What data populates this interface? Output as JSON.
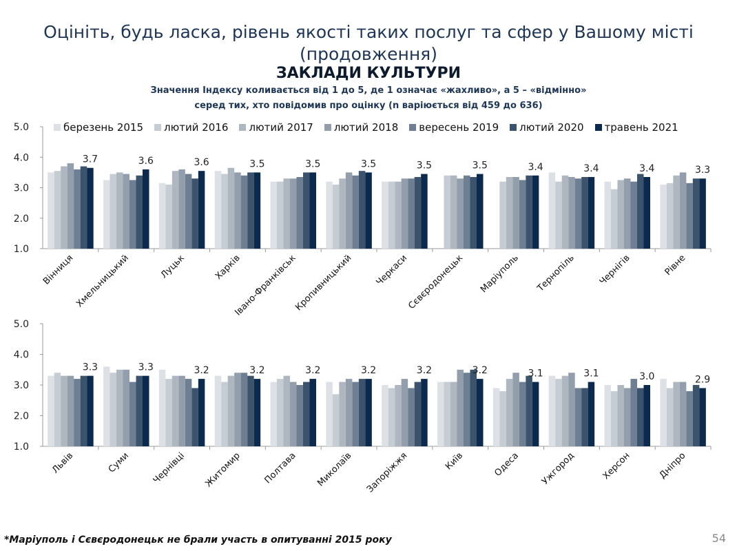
{
  "title_line1": "Оцініть, будь ласка, рівень якості таких послуг та сфер у Вашому місті",
  "title_line2": "(продовження)",
  "section": "ЗАКЛАДИ КУЛЬТУРИ",
  "subtitle_line1": "Значення Індексу коливається від 1 до 5, де 1 означає «жахливо», а 5 – «відмінно»",
  "subtitle_line2": "серед тих, хто повідомив про оцінку (n варіюється від 459 до 636)",
  "footnote": "*Маріуполь і Сєвєродонецьк не брали участь в опитуванні 2015 року",
  "page_number": "54",
  "chart_data": [
    {
      "type": "bar",
      "ylim": [
        1,
        5
      ],
      "yticks": [
        "1.0",
        "2.0",
        "3.0",
        "4.0",
        "5.0"
      ],
      "series_names": [
        "березень 2015",
        "лютий 2016",
        "лютий 2017",
        "лютий 2018",
        "вересень 2019",
        "лютий 2020",
        "травень 2021"
      ],
      "colors": [
        "#dde1e6",
        "#c6ccd3",
        "#aeb6c0",
        "#929eac",
        "#6e7f93",
        "#3c536e",
        "#0c2a4d"
      ],
      "categories": [
        "Вінниця",
        "Хмельницький",
        "Луцьк",
        "Харків",
        "Івано-Франківськ",
        "Кропивницький",
        "Черкаси",
        "Сєвєродонецьк",
        "Маріуполь",
        "Тернопіль",
        "Чернігів",
        "Рівне"
      ],
      "values": [
        [
          3.5,
          3.55,
          3.7,
          3.8,
          3.6,
          3.7,
          3.65
        ],
        [
          3.25,
          3.45,
          3.5,
          3.45,
          3.25,
          3.4,
          3.6
        ],
        [
          3.15,
          3.1,
          3.55,
          3.6,
          3.45,
          3.3,
          3.55
        ],
        [
          3.55,
          3.45,
          3.65,
          3.5,
          3.4,
          3.5,
          3.5
        ],
        [
          3.2,
          3.2,
          3.3,
          3.3,
          3.35,
          3.5,
          3.5
        ],
        [
          3.2,
          3.1,
          3.3,
          3.5,
          3.4,
          3.55,
          3.5
        ],
        [
          3.2,
          3.2,
          3.2,
          3.3,
          3.3,
          3.35,
          3.45
        ],
        [
          null,
          3.4,
          3.4,
          3.3,
          3.4,
          3.35,
          3.45
        ],
        [
          null,
          3.2,
          3.35,
          3.35,
          3.25,
          3.4,
          3.4
        ],
        [
          3.5,
          3.2,
          3.4,
          3.35,
          3.3,
          3.35,
          3.35
        ],
        [
          3.2,
          2.95,
          3.25,
          3.3,
          3.2,
          3.45,
          3.35
        ],
        [
          3.1,
          3.15,
          3.4,
          3.5,
          3.15,
          3.3,
          3.3
        ]
      ],
      "labels": [
        "3.7",
        "3.6",
        "3.6",
        "3.5",
        "3.5",
        "3.5",
        "3.5",
        "3.5",
        "3.4",
        "3.4",
        "3.4",
        "3.3"
      ]
    },
    {
      "type": "bar",
      "ylim": [
        1,
        5
      ],
      "yticks": [
        "1.0",
        "2.0",
        "3.0",
        "4.0",
        "5.0"
      ],
      "categories": [
        "Львів",
        "Суми",
        "Чернівці",
        "Житомир",
        "Полтава",
        "Миколаїв",
        "Запоріжжя",
        "Київ",
        "Одеса",
        "Ужгород",
        "Херсон",
        "Дніпро"
      ],
      "values": [
        [
          3.3,
          3.4,
          3.3,
          3.3,
          3.2,
          3.3,
          3.3
        ],
        [
          3.6,
          3.4,
          3.5,
          3.5,
          3.1,
          3.3,
          3.3
        ],
        [
          3.5,
          3.2,
          3.3,
          3.3,
          3.2,
          2.9,
          3.2
        ],
        [
          3.3,
          3.1,
          3.3,
          3.4,
          3.4,
          3.3,
          3.2
        ],
        [
          3.1,
          3.2,
          3.3,
          3.1,
          3.0,
          3.1,
          3.2
        ],
        [
          3.1,
          2.7,
          3.1,
          3.2,
          3.1,
          3.2,
          3.2
        ],
        [
          3.0,
          2.9,
          3.0,
          3.2,
          2.9,
          3.1,
          3.2
        ],
        [
          3.1,
          3.1,
          3.1,
          3.5,
          3.4,
          3.5,
          3.2
        ],
        [
          2.9,
          2.8,
          3.2,
          3.4,
          3.1,
          3.3,
          3.1
        ],
        [
          3.3,
          3.2,
          3.3,
          3.4,
          2.9,
          2.9,
          3.1
        ],
        [
          3.0,
          2.8,
          3.0,
          2.9,
          3.2,
          2.9,
          3.0
        ],
        [
          3.2,
          2.9,
          3.1,
          3.1,
          2.8,
          3.0,
          2.9
        ]
      ],
      "labels": [
        "3.3",
        "3.3",
        "3.2",
        "3.2",
        "3.2",
        "3.2",
        "3.2",
        "3.2",
        "3.1",
        "3.1",
        "3.0",
        "2.9"
      ]
    }
  ]
}
